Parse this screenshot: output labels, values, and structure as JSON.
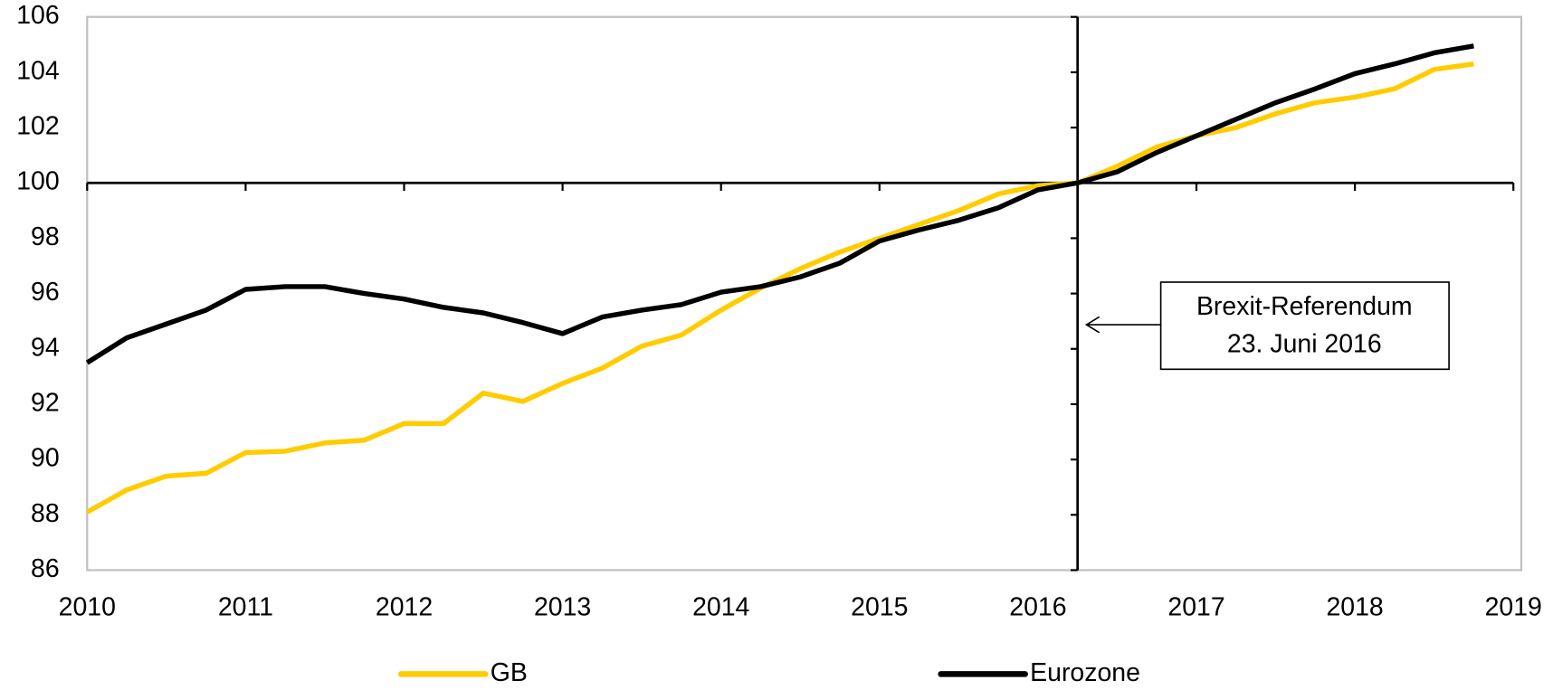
{
  "chart_data": {
    "type": "line",
    "x": [
      2010,
      2010.25,
      2010.5,
      2010.75,
      2011,
      2011.25,
      2011.5,
      2011.75,
      2012,
      2012.25,
      2012.5,
      2012.75,
      2013,
      2013.25,
      2013.5,
      2013.75,
      2014,
      2014.25,
      2014.5,
      2014.75,
      2015,
      2015.25,
      2015.5,
      2015.75,
      2016,
      2016.25,
      2016.5,
      2016.75,
      2017,
      2017.25,
      2017.5,
      2017.75,
      2018,
      2018.25,
      2018.5,
      2018.75
    ],
    "series": [
      {
        "name": "GB",
        "color": "#ffcc00",
        "values": [
          88.1,
          88.9,
          89.4,
          89.5,
          90.25,
          90.3,
          90.6,
          90.7,
          91.3,
          91.3,
          92.4,
          92.1,
          92.75,
          93.3,
          94.1,
          94.5,
          95.4,
          96.2,
          96.9,
          97.5,
          98.0,
          98.5,
          99.0,
          99.6,
          99.9,
          100,
          100.6,
          101.3,
          101.7,
          102.0,
          102.5,
          102.9,
          103.1,
          103.4,
          104.1,
          104.3
        ]
      },
      {
        "name": "Eurozone",
        "color": "#000000",
        "values": [
          93.5,
          94.4,
          94.9,
          95.4,
          96.15,
          96.25,
          96.25,
          96.0,
          95.8,
          95.5,
          95.3,
          94.95,
          94.55,
          95.15,
          95.4,
          95.6,
          96.05,
          96.25,
          96.6,
          97.1,
          97.9,
          98.3,
          98.65,
          99.1,
          99.75,
          100,
          100.4,
          101.1,
          101.7,
          102.3,
          102.9,
          103.4,
          103.95,
          104.3,
          104.7,
          104.95
        ]
      }
    ],
    "xlim": [
      2010,
      2019
    ],
    "xticks": [
      2010,
      2011,
      2012,
      2013,
      2014,
      2015,
      2016,
      2017,
      2018,
      2019
    ],
    "ylim": [
      86,
      106
    ],
    "yticks": [
      86,
      88,
      90,
      92,
      94,
      96,
      98,
      100,
      102,
      104,
      106
    ],
    "hline": 100,
    "vline": 2016.25,
    "annotation": [
      "Brexit-Referendum",
      "23. Juni 2016"
    ],
    "legend": "bottom"
  }
}
